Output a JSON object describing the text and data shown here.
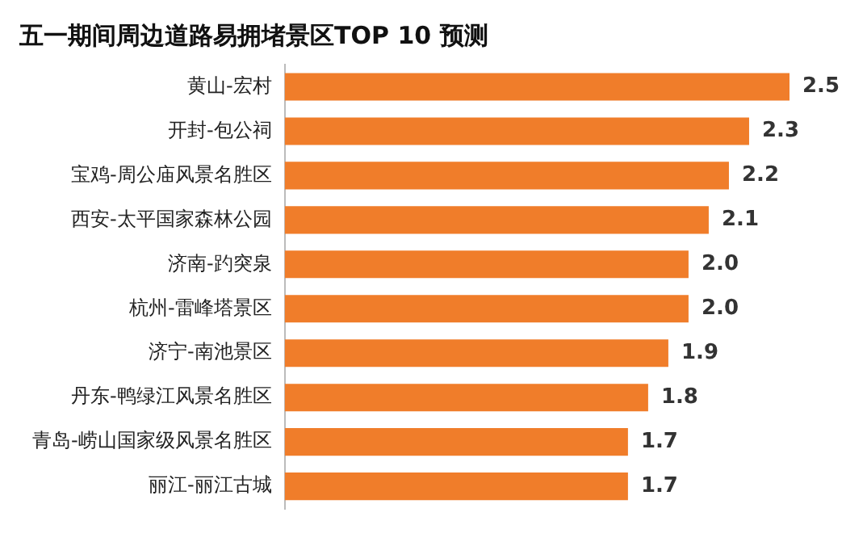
{
  "chart_data": {
    "type": "bar",
    "orientation": "horizontal",
    "title": "五一期间周边道路易拥堵景区TOP 10 预测",
    "categories": [
      "黄山-宏村",
      "开封-包公祠",
      "宝鸡-周公庙风景名胜区",
      "西安-太平国家森林公园",
      "济南-趵突泉",
      "杭州-雷峰塔景区",
      "济宁-南池景区",
      "丹东-鸭绿江风景名胜区",
      "青岛-崂山国家级风景名胜区",
      "丽江-丽江古城"
    ],
    "values": [
      2.5,
      2.3,
      2.2,
      2.1,
      2.0,
      2.0,
      1.9,
      1.8,
      1.7,
      1.7
    ],
    "value_labels": [
      "2.5",
      "2.3",
      "2.2",
      "2.1",
      "2.0",
      "2.0",
      "1.9",
      "1.8",
      "1.7",
      "1.7"
    ],
    "color": "#f07d2a",
    "legend": false
  }
}
